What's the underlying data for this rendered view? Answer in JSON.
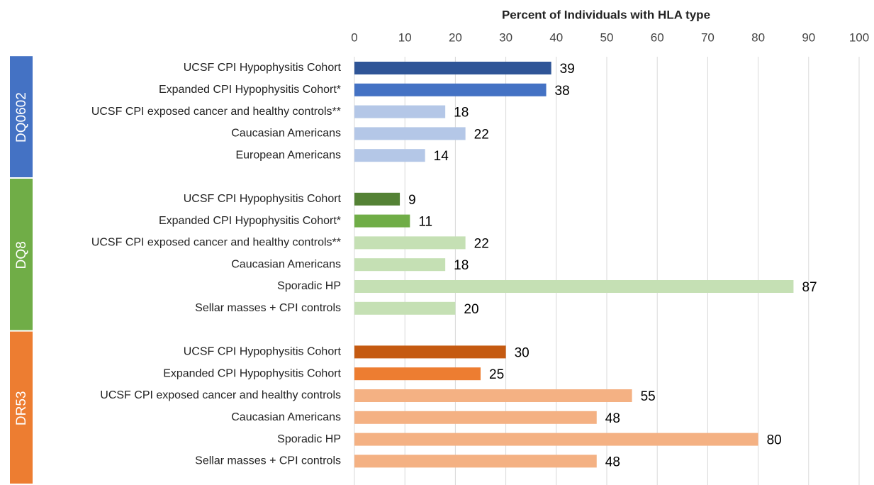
{
  "chart_data": {
    "type": "bar",
    "orientation": "horizontal",
    "x_label": "Percent of Individuals with HLA type",
    "xlim": [
      0,
      100
    ],
    "xticks": [
      0,
      10,
      20,
      30,
      40,
      50,
      60,
      70,
      80,
      90,
      100
    ],
    "grid": true,
    "groups": [
      {
        "name": "DQ0602",
        "color": "#4472c4",
        "categories": [
          "UCSF CPI Hypophysitis Cohort",
          "Expanded CPI Hypophysitis Cohort*",
          "UCSF CPI exposed cancer and healthy controls**",
          "Caucasian Americans",
          "European Americans"
        ],
        "values": [
          39,
          38,
          18,
          22,
          14
        ],
        "colors": [
          "#2f5597",
          "#4472c4",
          "#b4c7e7",
          "#b4c7e7",
          "#b4c7e7"
        ]
      },
      {
        "name": "DQ8",
        "color": "#70ad47",
        "categories": [
          "UCSF CPI Hypophysitis Cohort",
          "Expanded CPI Hypophysitis Cohort*",
          "UCSF CPI exposed cancer and healthy controls**",
          "Caucasian Americans",
          "Sporadic HP",
          "Sellar masses + CPI controls"
        ],
        "values": [
          9,
          11,
          22,
          18,
          87,
          20
        ],
        "colors": [
          "#548235",
          "#70ad47",
          "#c5e0b4",
          "#c5e0b4",
          "#c5e0b4",
          "#c5e0b4"
        ]
      },
      {
        "name": "DR53",
        "color": "#ed7d31",
        "categories": [
          "UCSF CPI Hypophysitis Cohort",
          "Expanded CPI Hypophysitis Cohort",
          "UCSF CPI exposed cancer and healthy controls",
          "Caucasian Americans",
          "Sporadic HP",
          "Sellar masses + CPI controls"
        ],
        "values": [
          30,
          25,
          55,
          48,
          80,
          48
        ],
        "colors": [
          "#c55a11",
          "#ed7d31",
          "#f4b183",
          "#f4b183",
          "#f4b183",
          "#f4b183"
        ]
      }
    ]
  }
}
